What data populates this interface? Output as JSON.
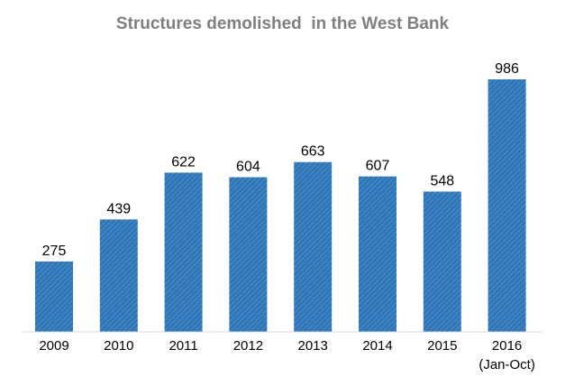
{
  "chart_data": {
    "type": "bar",
    "title": "Structures demolished  in the West Bank",
    "xlabel": "",
    "ylabel": "",
    "categories": [
      "2009",
      "2010",
      "2011",
      "2012",
      "2013",
      "2014",
      "2015",
      "2016"
    ],
    "category_sublabels": [
      "",
      "",
      "",
      "",
      "",
      "",
      "",
      "(Jan-Oct)"
    ],
    "values": [
      275,
      439,
      622,
      604,
      663,
      607,
      548,
      986
    ],
    "ylim": [
      0,
      1050
    ],
    "grid": false,
    "legend": "none",
    "colors": {
      "bar_fill": "#2e75b6",
      "bar_hatch": "#5b9bd5",
      "axis": "#d9d9d9",
      "title": "#7f7f7f"
    }
  }
}
